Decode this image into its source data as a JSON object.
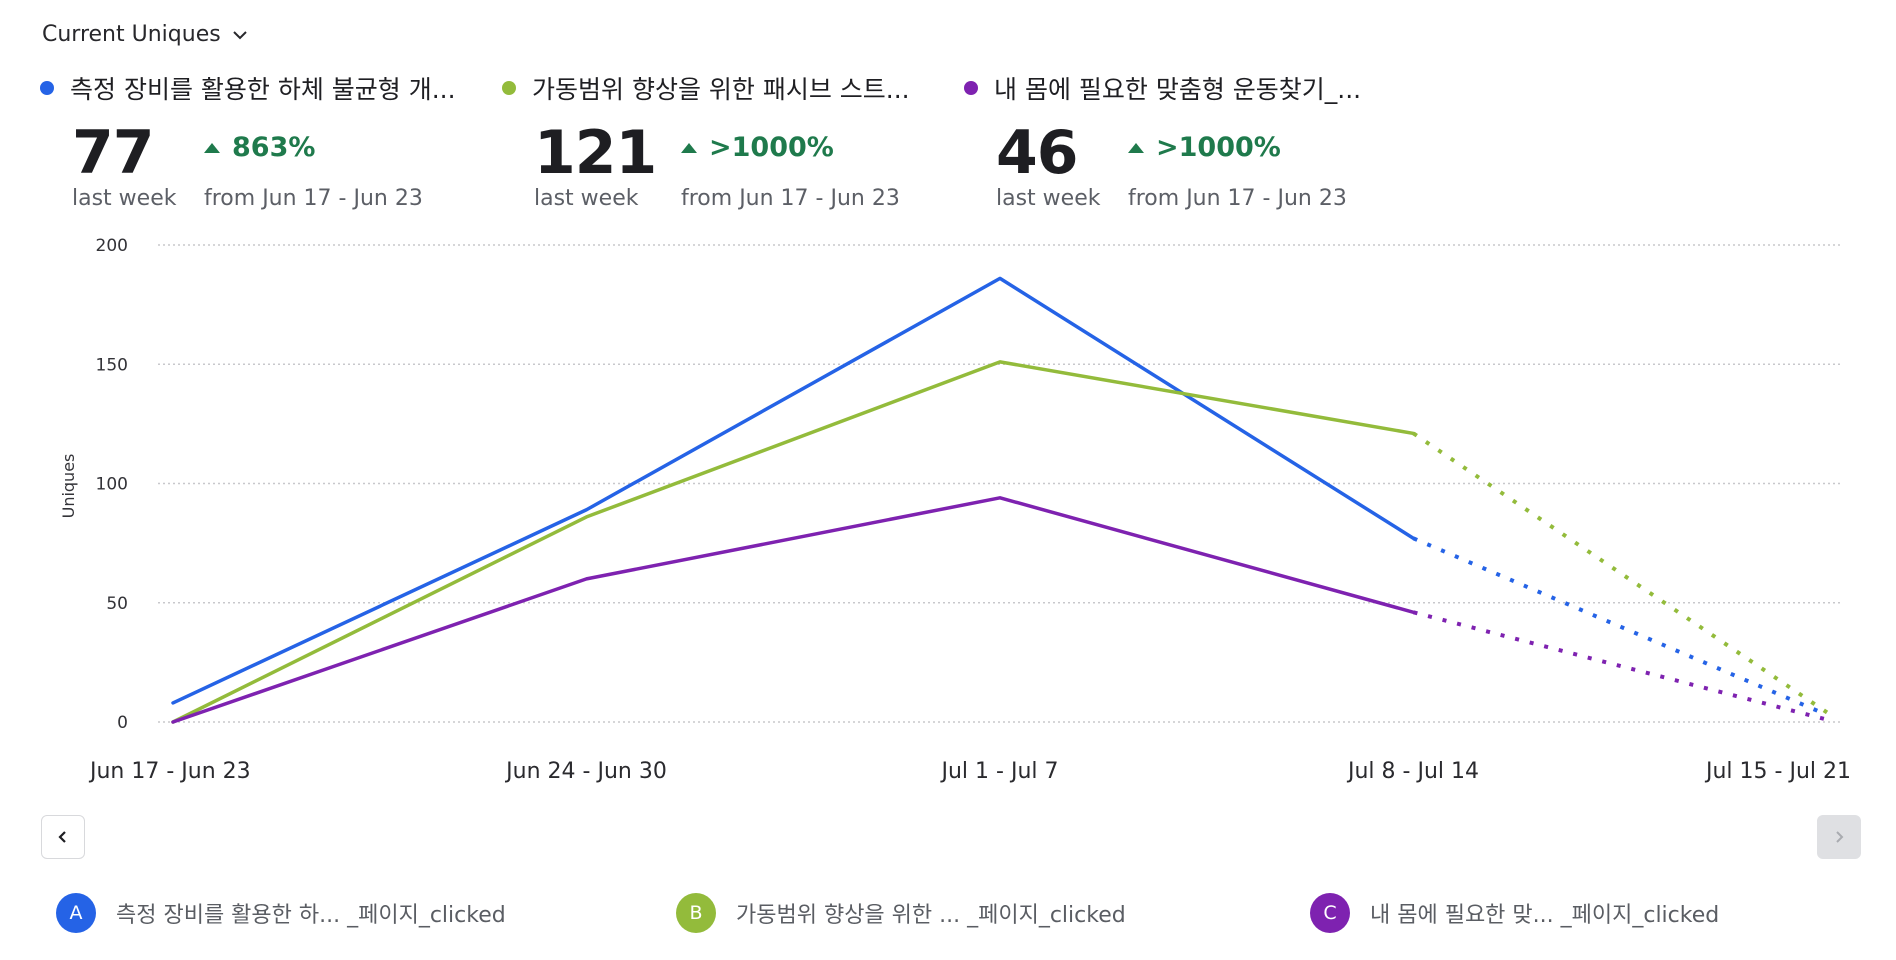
{
  "header": {
    "metric_label": "Current Uniques",
    "dropdown_icon": "chevron-down-icon"
  },
  "series": [
    {
      "id": "A",
      "name_short": "측정 장비를 활용한 하체 불균형 개...",
      "legend_label": "측정 장비를 활용한 하... _페이지_clicked",
      "color": "#2563e6",
      "kpi": {
        "value": "77",
        "value_caption": "last week",
        "change": "863%",
        "change_direction": "up",
        "change_caption": "from Jun 17 - Jun 23"
      }
    },
    {
      "id": "B",
      "name_short": "가동범위 향상을 위한 패시브 스트...",
      "legend_label": "가동범위 향상을 위한 ...  _페이지_clicked",
      "color": "#93bb3b",
      "kpi": {
        "value": "121",
        "value_caption": "last week",
        "change": ">1000%",
        "change_direction": "up",
        "change_caption": "from Jun 17 - Jun 23"
      }
    },
    {
      "id": "C",
      "name_short": "내 몸에 필요한 맞춤형 운동찾기_...",
      "legend_label": "내 몸에 필요한 맞... _페이지_clicked",
      "color": "#7e22b0",
      "kpi": {
        "value": "46",
        "value_caption": "last week",
        "change": ">1000%",
        "change_direction": "up",
        "change_caption": "from Jun 17 - Jun 23"
      }
    }
  ],
  "colors": {
    "positive": "#1f7a4c",
    "grid": "#c8c8cc"
  },
  "navigation": {
    "prev_icon": "chevron-left-icon",
    "next_icon": "chevron-right-icon",
    "next_disabled": true
  },
  "chart_data": {
    "type": "line",
    "title": "Current Uniques",
    "xlabel": "",
    "ylabel": "Uniques",
    "categories": [
      "Jun 17 - Jun 23",
      "Jun 24 - Jun 30",
      "Jul 1 - Jul 7",
      "Jul 8 - Jul 14",
      "Jul 15 - Jul 21"
    ],
    "ylim": [
      0,
      200
    ],
    "yticks": [
      0,
      50,
      100,
      150,
      200
    ],
    "grid": true,
    "incomplete_from_index": 3,
    "legend_position": "top-left",
    "series": [
      {
        "name": "측정 장비를 활용한 하체 불균형 개...",
        "color": "#2563e6",
        "values": [
          8,
          89,
          186,
          77,
          3
        ]
      },
      {
        "name": "가동범위 향상을 위한 패시브 스트...",
        "color": "#93bb3b",
        "values": [
          0,
          86,
          151,
          121,
          4
        ]
      },
      {
        "name": "내 몸에 필요한 맞춤형 운동찾기_...",
        "color": "#7e22b0",
        "values": [
          0,
          60,
          94,
          46,
          1
        ]
      }
    ]
  }
}
